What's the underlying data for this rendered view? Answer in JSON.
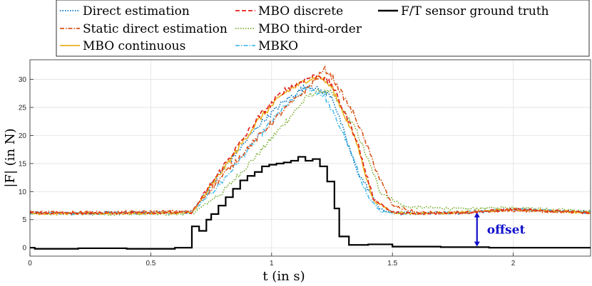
{
  "chart_data": {
    "type": "line",
    "title": "",
    "xlabel": "t (in s)",
    "ylabel": "|F| (in N)",
    "xlim": [
      0,
      2.32
    ],
    "ylim": [
      -1.5,
      33.5
    ],
    "grid": true,
    "legend_position": "top",
    "xticks": [
      0,
      0.5,
      1,
      1.5,
      2
    ],
    "xtick_labels": [
      "0",
      "0.5",
      "1",
      "1.5",
      "2"
    ],
    "yticks": [
      0,
      5,
      10,
      15,
      20,
      25,
      30
    ],
    "ytick_labels": [
      "0",
      "5",
      "10",
      "15",
      "20",
      "25",
      "30"
    ],
    "annotation": {
      "text": "offset",
      "x": 1.85,
      "y_from": 0.2,
      "y_to": 6.3,
      "color": "#1010cc"
    },
    "series": [
      {
        "name": "Direct estimation",
        "color": "#0072bd",
        "dash": "dotted",
        "x": [
          0,
          0.3,
          0.67,
          0.8,
          0.95,
          1.05,
          1.15,
          1.25,
          1.35,
          1.45,
          1.5,
          1.6,
          1.8,
          2.0,
          2.2,
          2.32
        ],
        "y": [
          6.2,
          6.2,
          6.4,
          14,
          22,
          26,
          29,
          27,
          14,
          6.8,
          6.3,
          6.2,
          6.2,
          6.8,
          6.5,
          6.3
        ]
      },
      {
        "name": "Static direct estimation",
        "color": "#d95319",
        "dash": "dashdot",
        "x": [
          0,
          0.3,
          0.67,
          0.8,
          0.95,
          1.05,
          1.15,
          1.22,
          1.25,
          1.35,
          1.45,
          1.5,
          1.6,
          1.8,
          2.0,
          2.2,
          2.32
        ],
        "y": [
          6.3,
          6.3,
          6.5,
          13,
          20,
          24.5,
          28.5,
          31.8,
          30.5,
          23,
          12,
          7.5,
          6.3,
          6.2,
          6.6,
          6.4,
          6.3
        ]
      },
      {
        "name": "MBO continuous",
        "color": "#edb120",
        "dash": "solid",
        "x": [
          0,
          0.3,
          0.67,
          0.8,
          0.95,
          1.05,
          1.15,
          1.2,
          1.25,
          1.35,
          1.42,
          1.5,
          1.6,
          1.8,
          2.0,
          2.2,
          2.32
        ],
        "y": [
          6.1,
          6.1,
          6.2,
          14,
          23,
          27.5,
          30,
          30.5,
          28.5,
          19,
          8.5,
          6.3,
          6.1,
          6.3,
          6.8,
          6.5,
          6.2
        ]
      },
      {
        "name": "MBO discrete",
        "color": "#e0201b",
        "dash": "dashed",
        "x": [
          0,
          0.3,
          0.67,
          0.8,
          0.95,
          1.05,
          1.15,
          1.2,
          1.25,
          1.35,
          1.42,
          1.5,
          1.6,
          1.8,
          2.0,
          2.2,
          2.32
        ],
        "y": [
          6.2,
          6.2,
          6.3,
          14.5,
          23.5,
          28,
          30.2,
          30.8,
          29,
          19.5,
          8.8,
          6.3,
          6.0,
          6.3,
          6.8,
          6.5,
          6.2
        ]
      },
      {
        "name": "MBO third-order",
        "color": "#77ac30",
        "dash": "dotted",
        "x": [
          0,
          0.3,
          0.67,
          0.8,
          0.95,
          1.05,
          1.15,
          1.2,
          1.25,
          1.35,
          1.45,
          1.55,
          1.8,
          2.0,
          2.2,
          2.32
        ],
        "y": [
          6.0,
          6.0,
          6.0,
          10,
          17,
          22,
          27,
          28,
          27.5,
          21,
          10,
          7.3,
          6.9,
          7.2,
          6.8,
          6.5
        ]
      },
      {
        "name": "MBKO",
        "color": "#4dbeee",
        "dash": "dashdot",
        "x": [
          0,
          0.3,
          0.67,
          0.8,
          0.95,
          1.05,
          1.15,
          1.22,
          1.3,
          1.4,
          1.45,
          1.5,
          1.6,
          1.8,
          2.0,
          2.2,
          2.32
        ],
        "y": [
          6.1,
          6.1,
          6.2,
          12,
          20,
          25,
          28.5,
          27,
          20,
          9,
          6.5,
          6.0,
          6.1,
          6.4,
          6.9,
          6.5,
          6.3
        ]
      },
      {
        "name": "F/T sensor ground truth",
        "color": "#000000",
        "dash": "solid",
        "step": true,
        "x": [
          0,
          0.02,
          0.2,
          0.4,
          0.6,
          0.67,
          0.7,
          0.73,
          0.75,
          0.78,
          0.81,
          0.84,
          0.87,
          0.9,
          0.93,
          0.96,
          0.99,
          1.02,
          1.05,
          1.08,
          1.11,
          1.14,
          1.17,
          1.2,
          1.23,
          1.26,
          1.28,
          1.32,
          1.4,
          1.5,
          1.7,
          1.9,
          2.1,
          2.32
        ],
        "y": [
          0.0,
          -0.2,
          -0.1,
          -0.2,
          0.0,
          3.8,
          3.0,
          5.0,
          6.0,
          7.5,
          9.0,
          10.5,
          12.0,
          12.8,
          13.5,
          14.5,
          14.8,
          15.0,
          15.2,
          15.5,
          16.2,
          15.5,
          15.8,
          14.5,
          11.8,
          7.0,
          2.0,
          0.5,
          0.6,
          0.2,
          0.1,
          0.0,
          0.0,
          0.0
        ]
      }
    ]
  }
}
